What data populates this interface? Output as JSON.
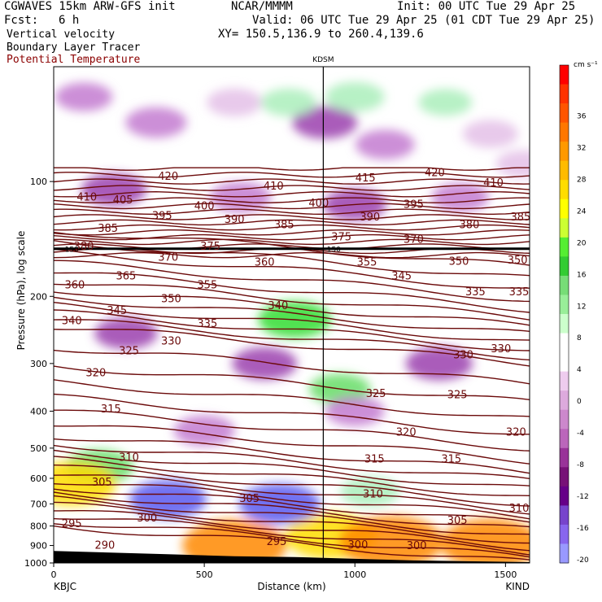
{
  "header": {
    "model": "CGWAVES 15km ARW-GFS init",
    "fcst_label": "Fcst:",
    "fcst_value": "6 h",
    "center": "NCAR/MMMM",
    "init": "Init: 00 UTC Tue 29 Apr 25",
    "valid": "Valid: 06 UTC Tue 29 Apr 25 (01 CDT Tue 29 Apr 25)",
    "xy": "XY= 150.5,136.9 to 260.4,139.6",
    "field1": "Vertical velocity",
    "field2": "Boundary Layer Tracer",
    "field3": "Potential Temperature"
  },
  "colors": {
    "theta_contour": "#6b0a0a",
    "tropopause_line": "#000000"
  },
  "chart_data": {
    "type": "heatmap",
    "title": "",
    "xlabel": "Distance (km)",
    "ylabel": "Pressure (hPa), log scale",
    "x_range": [
      0,
      1580
    ],
    "y_range_hpa": [
      1000,
      50
    ],
    "y_scale": "log",
    "x_ticks": [
      0,
      500,
      1000,
      1500
    ],
    "y_ticks": [
      100,
      200,
      300,
      400,
      500,
      600,
      700,
      800,
      900,
      1000
    ],
    "start_label": "KBJC",
    "end_label": "KIND",
    "marker": {
      "label": "KDSM",
      "x_km": 895
    },
    "tropopause_hpa": 150,
    "tropopause_labels": [
      "150",
      "150"
    ],
    "colorbar": {
      "units": "cm s⁻¹",
      "labels": [
        36,
        32,
        28,
        24,
        20,
        16,
        12,
        8,
        4,
        0,
        -4,
        -8,
        -12,
        -16,
        -20
      ],
      "colors": [
        "#ff0000",
        "#ff3300",
        "#ff5500",
        "#ff7700",
        "#ff9900",
        "#ffbb00",
        "#ffdd00",
        "#ffff00",
        "#ccff33",
        "#55ee33",
        "#33cc33",
        "#77dd77",
        "#99ee99",
        "#ccffcc",
        "#ffffff",
        "#ffffff",
        "#eeccee",
        "#ddaadd",
        "#cc88cc",
        "#bb66bb",
        "#993399",
        "#771177",
        "#660088",
        "#7744cc",
        "#8866ee",
        "#9999ff"
      ]
    },
    "theta_labels": [
      {
        "text": "420",
        "x": 380,
        "p": 97
      },
      {
        "text": "420",
        "x": 1265,
        "p": 95
      },
      {
        "text": "415",
        "x": 1035,
        "p": 98
      },
      {
        "text": "410",
        "x": 110,
        "p": 110
      },
      {
        "text": "410",
        "x": 730,
        "p": 103
      },
      {
        "text": "410",
        "x": 1460,
        "p": 101
      },
      {
        "text": "405",
        "x": 230,
        "p": 112
      },
      {
        "text": "400",
        "x": 500,
        "p": 116
      },
      {
        "text": "400",
        "x": 880,
        "p": 114
      },
      {
        "text": "395",
        "x": 360,
        "p": 123
      },
      {
        "text": "395",
        "x": 1195,
        "p": 115
      },
      {
        "text": "390",
        "x": 600,
        "p": 126
      },
      {
        "text": "390",
        "x": 1050,
        "p": 124
      },
      {
        "text": "385",
        "x": 180,
        "p": 133
      },
      {
        "text": "385",
        "x": 765,
        "p": 130
      },
      {
        "text": "385",
        "x": 1550,
        "p": 124
      },
      {
        "text": "380",
        "x": 100,
        "p": 148
      },
      {
        "text": "380",
        "x": 1380,
        "p": 130
      },
      {
        "text": "375",
        "x": 520,
        "p": 148
      },
      {
        "text": "375",
        "x": 955,
        "p": 140
      },
      {
        "text": "370",
        "x": 380,
        "p": 158
      },
      {
        "text": "370",
        "x": 1195,
        "p": 142
      },
      {
        "text": "365",
        "x": 240,
        "p": 177
      },
      {
        "text": "360",
        "x": 70,
        "p": 187
      },
      {
        "text": "360",
        "x": 700,
        "p": 163
      },
      {
        "text": "355",
        "x": 510,
        "p": 187
      },
      {
        "text": "355",
        "x": 1040,
        "p": 163
      },
      {
        "text": "350",
        "x": 390,
        "p": 203
      },
      {
        "text": "350",
        "x": 1345,
        "p": 162
      },
      {
        "text": "350",
        "x": 1540,
        "p": 161
      },
      {
        "text": "345",
        "x": 210,
        "p": 218
      },
      {
        "text": "345",
        "x": 1155,
        "p": 177
      },
      {
        "text": "340",
        "x": 60,
        "p": 232
      },
      {
        "text": "340",
        "x": 745,
        "p": 212
      },
      {
        "text": "335",
        "x": 510,
        "p": 236
      },
      {
        "text": "335",
        "x": 1400,
        "p": 195
      },
      {
        "text": "335",
        "x": 1545,
        "p": 195
      },
      {
        "text": "330",
        "x": 390,
        "p": 262
      },
      {
        "text": "330",
        "x": 1360,
        "p": 285
      },
      {
        "text": "330",
        "x": 1485,
        "p": 275
      },
      {
        "text": "325",
        "x": 250,
        "p": 278
      },
      {
        "text": "325",
        "x": 1070,
        "p": 360
      },
      {
        "text": "325",
        "x": 1340,
        "p": 363
      },
      {
        "text": "320",
        "x": 140,
        "p": 318
      },
      {
        "text": "320",
        "x": 1170,
        "p": 455
      },
      {
        "text": "320",
        "x": 1535,
        "p": 455
      },
      {
        "text": "315",
        "x": 190,
        "p": 395
      },
      {
        "text": "315",
        "x": 1065,
        "p": 535
      },
      {
        "text": "315",
        "x": 1320,
        "p": 535
      },
      {
        "text": "310",
        "x": 250,
        "p": 530
      },
      {
        "text": "310",
        "x": 1060,
        "p": 660
      },
      {
        "text": "310",
        "x": 1545,
        "p": 720
      },
      {
        "text": "305",
        "x": 160,
        "p": 615
      },
      {
        "text": "305",
        "x": 650,
        "p": 678
      },
      {
        "text": "305",
        "x": 1340,
        "p": 775
      },
      {
        "text": "300",
        "x": 310,
        "p": 763
      },
      {
        "text": "300",
        "x": 1010,
        "p": 898
      },
      {
        "text": "300",
        "x": 1205,
        "p": 902
      },
      {
        "text": "295",
        "x": 60,
        "p": 790
      },
      {
        "text": "295",
        "x": 740,
        "p": 880
      },
      {
        "text": "290",
        "x": 170,
        "p": 900
      }
    ],
    "w_features": [
      {
        "x": 340,
        "p": 70,
        "w": -8
      },
      {
        "x": 100,
        "p": 60,
        "w": -6
      },
      {
        "x": 600,
        "p": 62,
        "w": -5
      },
      {
        "x": 1100,
        "p": 80,
        "w": -7
      },
      {
        "x": 1450,
        "p": 75,
        "w": -5
      },
      {
        "x": 900,
        "p": 70,
        "w": -10
      },
      {
        "x": 1000,
        "p": 60,
        "w": 7
      },
      {
        "x": 780,
        "p": 62,
        "w": 5
      },
      {
        "x": 1300,
        "p": 62,
        "w": 4
      },
      {
        "x": 1560,
        "p": 90,
        "w": -5
      },
      {
        "x": 200,
        "p": 105,
        "w": -10
      },
      {
        "x": 620,
        "p": 110,
        "w": -8
      },
      {
        "x": 1000,
        "p": 115,
        "w": -9
      },
      {
        "x": 1350,
        "p": 110,
        "w": -6
      },
      {
        "x": 800,
        "p": 230,
        "w": 14
      },
      {
        "x": 700,
        "p": 300,
        "w": -10
      },
      {
        "x": 950,
        "p": 350,
        "w": 8
      },
      {
        "x": 1280,
        "p": 300,
        "w": -11
      },
      {
        "x": 500,
        "p": 450,
        "w": -8
      },
      {
        "x": 150,
        "p": 560,
        "w": 12
      },
      {
        "x": 60,
        "p": 620,
        "w": 22
      },
      {
        "x": 1050,
        "p": 650,
        "w": 7
      },
      {
        "x": 920,
        "p": 850,
        "w": 24
      },
      {
        "x": 1120,
        "p": 880,
        "w": 30
      },
      {
        "x": 600,
        "p": 900,
        "w": 30
      },
      {
        "x": 1450,
        "p": 890,
        "w": 28
      },
      {
        "x": 380,
        "p": 680,
        "w": -16
      },
      {
        "x": 750,
        "p": 700,
        "w": -18
      },
      {
        "x": 1000,
        "p": 400,
        "w": -7
      },
      {
        "x": 240,
        "p": 250,
        "w": -9
      }
    ]
  }
}
